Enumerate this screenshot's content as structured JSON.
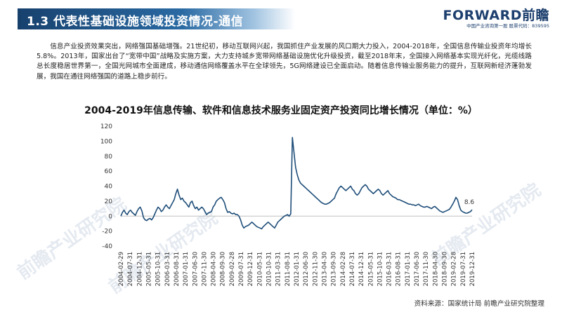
{
  "header": {
    "title": "1.3  代表性基础设施领域投资情况-通信",
    "logo_text": "FORWARD前瞻",
    "logo_subtitle": "中国产业咨询第一股  股票代码：839595"
  },
  "intro_text": "信息产业投资效果突出，网络强国基础增强。21世纪初，移动互联网兴起，我国抓住产业发展的风口期大力投入，2004-2018年，全国信息传输业投资年均增长5.8%。2013年，国家出台了“宽带中国”战略及实施方案，大力支持城乡宽带网络基础设施优化升级投资，截至2018年末，全国接入网络基本实现光纤化，光缆线路总长度稳居世界第一，全国光网城市全面建成，移动通信网络覆盖水平在全球领先，5G网络建设已全面启动。随着信息传输业服务能力的提升，互联网新经济蓬勃发展，我国在通往网络强国的道路上稳步前行。",
  "watermark_text": "前瞻产业研究院",
  "source": "资料来源：国家统计局 前瞻产业研究院整理",
  "chart_data": {
    "type": "line",
    "title": "2004-2019年信息传输、软件和信息技术服务业固定资产投资同比增长情况（单位：%）",
    "ylim": [
      -40,
      120
    ],
    "yticks": [
      -40,
      -20,
      0,
      20,
      40,
      60,
      80,
      100,
      120
    ],
    "xticks": [
      "2004-02-29",
      "2004-07-31",
      "2004-12-31",
      "2005-05-31",
      "2005-10-31",
      "2006-03-31",
      "2006-08-31",
      "2007-01-31",
      "2007-06-30",
      "2007-11-30",
      "2008-04-30",
      "2008-09-30",
      "2009-02-28",
      "2009-07-31",
      "2009-12-31",
      "2010-05-31",
      "2010-10-31",
      "2011-03-31",
      "2011-08-31",
      "2012-01-31",
      "2012-06-30",
      "2012-11-30",
      "2013-04-30",
      "2013-09-30",
      "2014-02-28",
      "2014-07-31",
      "2014-12-31",
      "2015-05-31",
      "2015-10-31",
      "2016-03-31",
      "2016-08-31",
      "2017-01-31",
      "2017-06-30",
      "2017-11-30",
      "2018-04-30",
      "2018-09-30",
      "2019-02-28",
      "2019-07-31",
      "2019-12-31"
    ],
    "grid": false,
    "legend": "none",
    "line_color": "#1f4e79",
    "end_label": "8.6",
    "series": [
      {
        "values": [
          0,
          5,
          8,
          4,
          2,
          6,
          8,
          5,
          3,
          1,
          6,
          10,
          12,
          7,
          -2,
          -5,
          -6,
          -4,
          -3,
          -5,
          -2,
          3,
          8,
          12,
          10,
          6,
          8,
          12,
          15,
          12,
          10,
          14,
          18,
          22,
          30,
          36,
          28,
          22,
          24,
          20,
          18,
          15,
          12,
          18,
          20,
          14,
          10,
          12,
          8,
          10,
          12,
          10,
          6,
          2,
          4,
          5,
          6,
          12,
          15,
          20,
          22,
          24,
          25,
          22,
          18,
          10,
          5,
          6,
          4,
          3,
          4,
          2,
          2,
          0,
          -5,
          -12,
          -16,
          -14,
          -13,
          -12,
          -10,
          -8,
          -10,
          -12,
          -14,
          -15,
          -16,
          -17,
          -14,
          -12,
          -10,
          -8,
          -10,
          -12,
          -14,
          -16,
          -12,
          -8,
          -6,
          -4,
          -2,
          0,
          1,
          2,
          0,
          3,
          105,
          85,
          65,
          55,
          48,
          44,
          42,
          40,
          38,
          36,
          34,
          32,
          30,
          28,
          26,
          24,
          22,
          20,
          18,
          17,
          16,
          16,
          17,
          18,
          20,
          22,
          24,
          30,
          34,
          38,
          40,
          38,
          36,
          34,
          36,
          38,
          40,
          36,
          34,
          30,
          28,
          30,
          34,
          38,
          40,
          42,
          40,
          36,
          34,
          32,
          30,
          32,
          34,
          36,
          34,
          30,
          28,
          30,
          32,
          34,
          30,
          28,
          26,
          25,
          24,
          22,
          22,
          21,
          20,
          19,
          18,
          17,
          16,
          16,
          15,
          15,
          14,
          15,
          16,
          14,
          13,
          12,
          12,
          13,
          12,
          11,
          10,
          12,
          13,
          11,
          9,
          7,
          6,
          5,
          6,
          7,
          8,
          9,
          12,
          16,
          20,
          25,
          22,
          14,
          8,
          6,
          5,
          4,
          4,
          5,
          6,
          8.6
        ]
      }
    ]
  }
}
